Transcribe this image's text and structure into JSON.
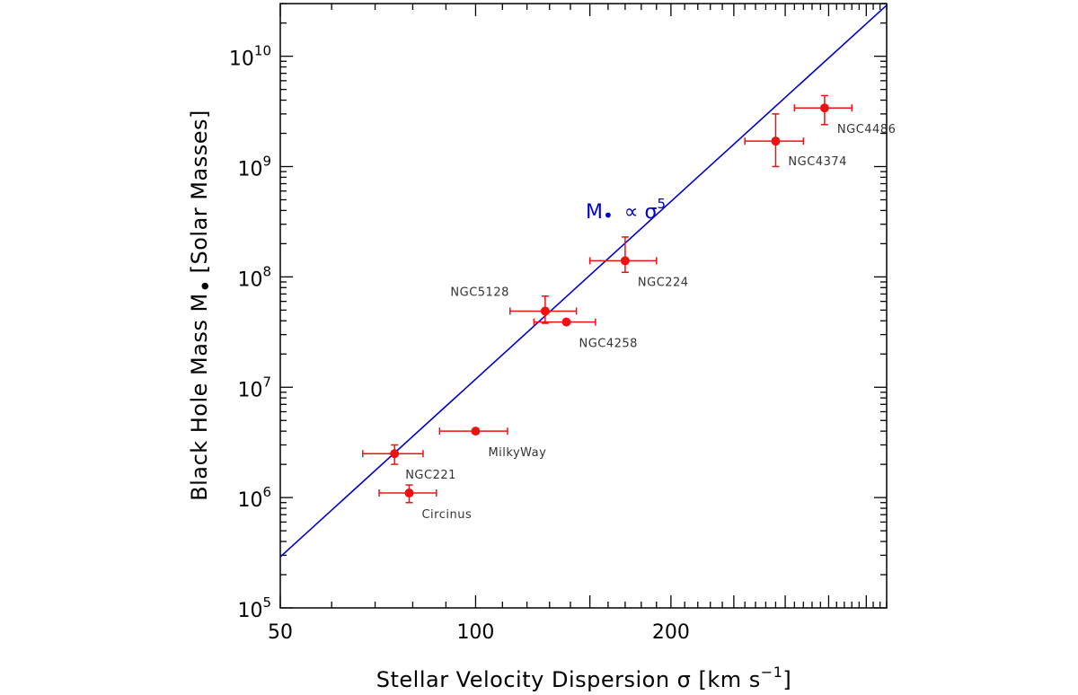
{
  "chart_data": {
    "type": "scatter",
    "title": "",
    "xlabel": "Stellar Velocity Dispersion σ [km s",
    "xlabel_sup": "−1",
    "xlabel_end": "]",
    "ylabel": "Black Hole Mass M",
    "ylabel_sub": "•",
    "ylabel_end": "[Solar Masses]",
    "xscale": "log",
    "yscale": "log",
    "xlim": [
      50,
      430
    ],
    "ylim": [
      100000,
      30000000000
    ],
    "grid": false,
    "x_ticks": [
      {
        "value": 50,
        "label": "50"
      },
      {
        "value": 100,
        "label": "100"
      },
      {
        "value": 200,
        "label": "200"
      }
    ],
    "y_ticks": [
      {
        "value": 100000,
        "base": "10",
        "exp": "5"
      },
      {
        "value": 1000000,
        "base": "10",
        "exp": "6"
      },
      {
        "value": 10000000,
        "base": "10",
        "exp": "7"
      },
      {
        "value": 100000000,
        "base": "10",
        "exp": "8"
      },
      {
        "value": 1000000000,
        "base": "10",
        "exp": "9"
      },
      {
        "value": 10000000000,
        "base": "10",
        "exp": "10"
      }
    ],
    "fit_line": {
      "relation": "M ∝ σ^5",
      "x": [
        50,
        430
      ],
      "y": [
        290000,
        29000000000
      ],
      "color": "#0000cc"
    },
    "annotation": {
      "text_main": "M",
      "text_sub": "•",
      "text_rel": "∝ σ",
      "text_exp": "5",
      "color": "#0000cc"
    },
    "marker_color": "#ee1111",
    "series": [
      {
        "points": [
          {
            "name": "NGC221",
            "x": 75,
            "y": 2500000,
            "xerr": [
              8,
              8
            ],
            "yerr": [
              500000,
              500000
            ]
          },
          {
            "name": "Circinus",
            "x": 79,
            "y": 1100000,
            "xerr": [
              8,
              8
            ],
            "yerr": [
              200000,
              200000
            ]
          },
          {
            "name": "MilkyWay",
            "x": 100,
            "y": 4000000,
            "xerr": [
              12,
              12
            ],
            "yerr": [
              0,
              0
            ]
          },
          {
            "name": "NGC5128",
            "x": 128,
            "y": 49000000,
            "xerr": [
              15,
              15
            ],
            "yerr": [
              11000000,
              18000000
            ]
          },
          {
            "name": "NGC4258",
            "x": 138,
            "y": 39000000,
            "xerr": [
              15,
              15
            ],
            "yerr": [
              0,
              0
            ]
          },
          {
            "name": "NGC224",
            "x": 170,
            "y": 140000000,
            "xerr": [
              20,
              20
            ],
            "yerr": [
              30000000,
              90000000
            ]
          },
          {
            "name": "NGC4374",
            "x": 290,
            "y": 1700000000,
            "xerr": [
              30,
              30
            ],
            "yerr": [
              700000000,
              1300000000
            ]
          },
          {
            "name": "NGC4486",
            "x": 345,
            "y": 3400000000,
            "xerr": [
              35,
              35
            ],
            "yerr": [
              1000000000,
              1000000000
            ]
          }
        ]
      }
    ]
  }
}
